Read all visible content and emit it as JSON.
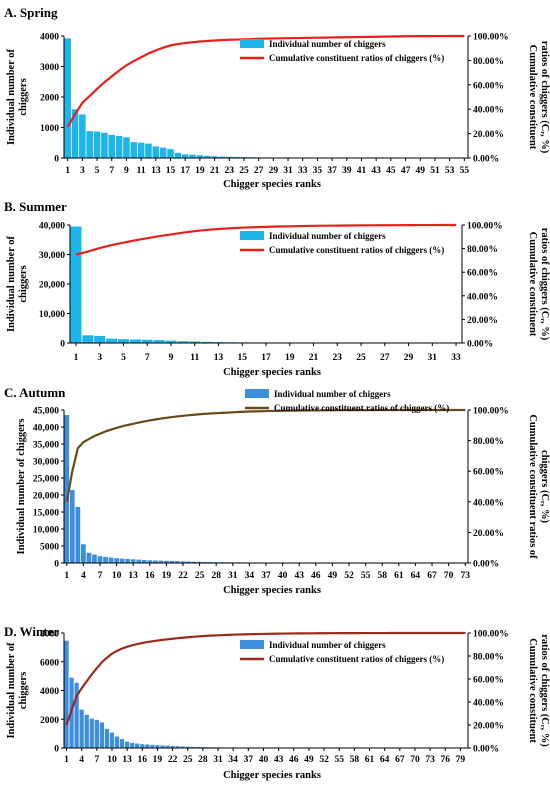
{
  "chart_data": [
    {
      "panel_label": "A. Spring",
      "type": "bar",
      "xlabel": "Chigger species ranks",
      "ylabel_lines": [
        "Individual number of",
        "chiggers"
      ],
      "y2label_lines": [
        "Cumulative constituent",
        "ratios of chiggers (Cᵣ, %)"
      ],
      "ylim": [
        0,
        4000
      ],
      "y_ticks": [
        "0",
        "1000",
        "2000",
        "3000",
        "4000"
      ],
      "y2lim": [
        0,
        100
      ],
      "y2_ticks": [
        "0.00%",
        "20.00%",
        "40.00%",
        "60.00%",
        "80.00%",
        "100.00%"
      ],
      "n_ranks": 55,
      "x_tick_step": 2,
      "x_ticks": [
        "1",
        "3",
        "5",
        "7",
        "9",
        "11",
        "13",
        "15",
        "17",
        "19",
        "21",
        "23",
        "25",
        "27",
        "29",
        "31",
        "33",
        "35",
        "37",
        "39",
        "41",
        "43",
        "45",
        "47",
        "49",
        "51",
        "53",
        "55"
      ],
      "series": [
        {
          "name": "Individual number of chiggers",
          "kind": "bar",
          "color": "#1fb4ea",
          "values": [
            3920,
            1600,
            1430,
            880,
            870,
            830,
            760,
            720,
            680,
            520,
            500,
            470,
            380,
            340,
            290,
            170,
            120,
            110,
            90,
            70,
            55,
            45,
            40,
            32,
            28,
            24,
            20,
            18,
            16,
            14,
            12,
            11,
            10,
            9,
            8,
            7,
            7,
            6,
            6,
            5,
            5,
            4,
            4,
            4,
            3,
            3,
            3,
            2,
            2,
            2,
            2,
            1,
            1,
            1,
            1
          ]
        },
        {
          "name": "Cumulative constituent ratios of chiggers (%)",
          "kind": "line",
          "color": "#e8201c",
          "values": [
            25.5,
            35.9,
            45.2,
            50.9,
            56.6,
            62.0,
            66.9,
            71.6,
            76.0,
            79.4,
            82.6,
            85.7,
            88.2,
            90.4,
            92.3,
            93.4,
            94.2,
            94.9,
            95.5,
            95.9,
            96.3,
            96.6,
            96.9,
            97.1,
            97.3,
            97.5,
            97.7,
            97.9,
            98.0,
            98.1,
            98.2,
            98.3,
            98.4,
            98.5,
            98.6,
            98.7,
            98.8,
            98.9,
            99.0,
            99.1,
            99.2,
            99.3,
            99.4,
            99.5,
            99.6,
            99.7,
            99.8,
            99.85,
            99.9,
            99.92,
            99.94,
            99.96,
            99.98,
            99.99,
            100
          ]
        }
      ]
    },
    {
      "panel_label": "B. Summer",
      "type": "bar",
      "xlabel": "Chigger species ranks",
      "ylabel_lines": [
        "Individual number of",
        "chiggers"
      ],
      "y2label_lines": [
        "Cumulative constituent",
        "ratios of chiggers (Cᵣ, %)"
      ],
      "ylim": [
        0,
        40000
      ],
      "y_ticks": [
        "0",
        "10,000",
        "20,000",
        "30,000",
        "40,000"
      ],
      "y2lim": [
        0,
        100
      ],
      "y2_ticks": [
        "0.00%",
        "20.00%",
        "40.00%",
        "60.00%",
        "80.00%",
        "100.00%"
      ],
      "n_ranks": 33,
      "x_tick_step": 2,
      "x_ticks": [
        "1",
        "3",
        "5",
        "7",
        "9",
        "11",
        "13",
        "15",
        "17",
        "19",
        "21",
        "23",
        "25",
        "27",
        "29",
        "31",
        "33"
      ],
      "series": [
        {
          "name": "Individual number of chiggers",
          "kind": "bar",
          "color": "#1fb4ea",
          "values": [
            39500,
            2600,
            2400,
            1500,
            1300,
            1200,
            1100,
            1000,
            800,
            600,
            500,
            400,
            300,
            250,
            200,
            150,
            120,
            100,
            80,
            70,
            60,
            50,
            40,
            35,
            30,
            25,
            20,
            18,
            15,
            12,
            10,
            8,
            5
          ]
        },
        {
          "name": "Cumulative constituent ratios of chiggers (%)",
          "kind": "line",
          "color": "#e8201c",
          "values": [
            74.8,
            77.5,
            80.5,
            83.0,
            85.0,
            87.0,
            88.8,
            90.5,
            92.0,
            93.5,
            94.8,
            95.8,
            96.6,
            97.2,
            97.7,
            98.1,
            98.4,
            98.7,
            98.9,
            99.1,
            99.3,
            99.4,
            99.5,
            99.6,
            99.7,
            99.75,
            99.8,
            99.85,
            99.9,
            99.93,
            99.96,
            99.98,
            100
          ]
        }
      ]
    },
    {
      "panel_label": "C. Autumn",
      "type": "bar",
      "xlabel": "Chigger species ranks",
      "ylabel_lines": [
        "Individual number of chiggers"
      ],
      "y2label_lines": [
        "Cumulative constituent ratios of",
        "chiggers (Cᵣ, %)"
      ],
      "ylim": [
        0,
        45000
      ],
      "y_ticks": [
        "0",
        "5000",
        "10,000",
        "15,000",
        "20,000",
        "25,000",
        "30,000",
        "35,000",
        "40,000",
        "45,000"
      ],
      "y2lim": [
        0,
        100
      ],
      "y2_ticks": [
        "0.00%",
        "20.00%",
        "40.00%",
        "60.00%",
        "80.00%",
        "100.00%"
      ],
      "n_ranks": 73,
      "x_tick_step": 3,
      "x_ticks": [
        "1",
        "4",
        "7",
        "10",
        "13",
        "16",
        "19",
        "22",
        "25",
        "28",
        "31",
        "34",
        "37",
        "40",
        "43",
        "46",
        "49",
        "52",
        "55",
        "58",
        "61",
        "64",
        "67",
        "70",
        "73"
      ],
      "series": [
        {
          "name": "Individual number of chiggers",
          "kind": "bar",
          "color": "#3e8ede",
          "values": [
            43500,
            21500,
            16500,
            5500,
            3000,
            2500,
            2000,
            1800,
            1600,
            1400,
            1300,
            1200,
            1100,
            1000,
            900,
            800,
            750,
            700,
            650,
            600,
            550,
            500,
            450,
            400,
            350,
            300,
            280,
            260,
            240,
            220,
            200,
            180,
            160,
            140,
            120,
            110,
            100,
            90,
            80,
            70,
            65,
            60,
            55,
            50,
            45,
            40,
            35,
            30,
            28,
            26,
            24,
            22,
            20,
            18,
            16,
            14,
            12,
            11,
            10,
            9,
            8,
            7,
            6,
            5,
            5,
            4,
            4,
            3,
            3,
            2,
            2,
            1,
            1
          ]
        },
        {
          "name": "Cumulative constituent ratios of chiggers (%)",
          "kind": "line",
          "color": "#6b4a1a",
          "values": [
            40,
            60,
            75,
            79,
            81,
            83,
            84.5,
            86,
            87.2,
            88.3,
            89.3,
            90.2,
            91,
            91.8,
            92.5,
            93.2,
            93.8,
            94.4,
            94.9,
            95.4,
            95.8,
            96.2,
            96.6,
            96.9,
            97.2,
            97.5,
            97.7,
            97.9,
            98.1,
            98.3,
            98.5,
            98.7,
            98.85,
            99,
            99.1,
            99.2,
            99.3,
            99.4,
            99.45,
            99.5,
            99.55,
            99.6,
            99.65,
            99.7,
            99.73,
            99.76,
            99.79,
            99.82,
            99.84,
            99.86,
            99.88,
            99.9,
            99.91,
            99.92,
            99.93,
            99.94,
            99.95,
            99.96,
            99.97,
            99.975,
            99.98,
            99.985,
            99.99,
            99.992,
            99.994,
            99.995,
            99.996,
            99.997,
            99.998,
            99.999,
            99.999,
            100,
            100
          ]
        }
      ]
    },
    {
      "panel_label": "D. Winter",
      "type": "bar",
      "xlabel": "Chigger species ranks",
      "ylabel_lines": [
        "Individual number of",
        "chiggers"
      ],
      "y2label_lines": [
        "Cumulative constituent",
        "ratios of chiggers (Cᵣ, %)"
      ],
      "ylim": [
        0,
        9000
      ],
      "y_ticks": [
        "0",
        "2000",
        "4000",
        "6000",
        "8000"
      ],
      "y2lim": [
        0,
        100
      ],
      "y2_ticks": [
        "0.00%",
        "20.00%",
        "40.00%",
        "60.00%",
        "80.00%",
        "100.00%"
      ],
      "n_ranks": 80,
      "x_tick_step": 3,
      "x_ticks": [
        "1",
        "4",
        "7",
        "10",
        "13",
        "16",
        "19",
        "22",
        "25",
        "28",
        "31",
        "34",
        "37",
        "40",
        "43",
        "46",
        "49",
        "52",
        "55",
        "58",
        "61",
        "64",
        "67",
        "70",
        "73",
        "76",
        "79"
      ],
      "series": [
        {
          "name": "Individual number of chiggers",
          "kind": "bar",
          "color": "#3e8ede",
          "values": [
            8400,
            5500,
            5100,
            3000,
            2600,
            2300,
            2200,
            2000,
            1500,
            1200,
            900,
            700,
            500,
            400,
            350,
            300,
            280,
            250,
            220,
            200,
            180,
            160,
            140,
            120,
            100,
            90,
            80,
            70,
            60,
            55,
            50,
            45,
            40,
            35,
            30,
            28,
            26,
            24,
            22,
            20,
            18,
            16,
            14,
            12,
            11,
            10,
            9,
            8,
            8,
            7,
            7,
            6,
            6,
            5,
            5,
            5,
            4,
            4,
            4,
            3,
            3,
            3,
            3,
            2,
            2,
            2,
            2,
            2,
            2,
            1,
            1,
            1,
            1,
            1,
            1,
            1,
            1,
            1,
            1,
            1
          ]
        },
        {
          "name": "Cumulative constituent ratios of chiggers (%)",
          "kind": "line",
          "color": "#9a2a1e",
          "values": [
            20,
            33,
            45,
            52,
            58,
            64,
            69.5,
            74.5,
            78.5,
            82,
            84.5,
            86.5,
            88,
            89.3,
            90.4,
            91.3,
            92.1,
            92.8,
            93.4,
            94,
            94.5,
            95,
            95.5,
            95.9,
            96.3,
            96.7,
            97,
            97.3,
            97.6,
            97.8,
            98,
            98.2,
            98.4,
            98.55,
            98.7,
            98.8,
            98.9,
            99,
            99.1,
            99.2,
            99.28,
            99.36,
            99.44,
            99.5,
            99.55,
            99.6,
            99.64,
            99.68,
            99.72,
            99.75,
            99.78,
            99.8,
            99.82,
            99.84,
            99.86,
            99.88,
            99.9,
            99.91,
            99.92,
            99.93,
            99.94,
            99.95,
            99.96,
            99.965,
            99.97,
            99.975,
            99.98,
            99.984,
            99.988,
            99.99,
            99.992,
            99.994,
            99.995,
            99.996,
            99.997,
            99.998,
            99.998,
            99.999,
            99.999,
            100
          ]
        }
      ]
    }
  ]
}
